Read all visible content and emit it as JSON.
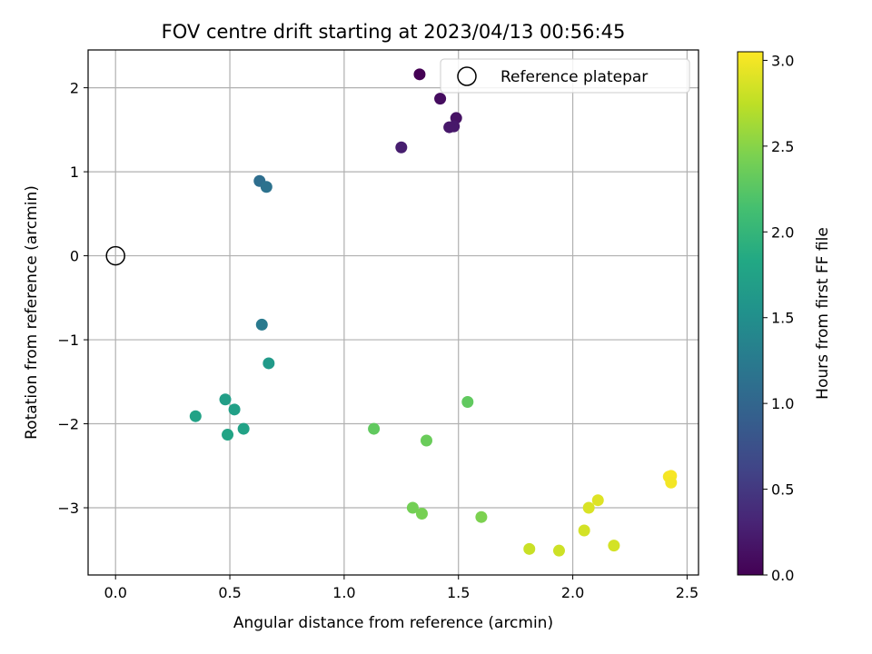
{
  "chart_data": {
    "type": "scatter",
    "title": "FOV centre drift starting at 2023/04/13 00:56:45",
    "xlabel": "Angular distance from reference (arcmin)",
    "ylabel": "Rotation from reference (arcmin)",
    "xlim": [
      -0.12,
      2.55
    ],
    "ylim": [
      -3.8,
      2.45
    ],
    "xticks": [
      0.0,
      0.5,
      1.0,
      1.5,
      2.0,
      2.5
    ],
    "xtick_labels": [
      "0.0",
      "0.5",
      "1.0",
      "1.5",
      "2.0",
      "2.5"
    ],
    "yticks": [
      -3,
      -2,
      -1,
      0,
      1,
      2
    ],
    "ytick_labels": [
      "−3",
      "−2",
      "−1",
      "0",
      "1",
      "2"
    ],
    "grid": true,
    "legend": {
      "placement": "top-right",
      "entries": [
        {
          "label": "Reference platepar",
          "marker": "open-circle"
        }
      ]
    },
    "reference_point": {
      "x": 0.0,
      "y": 0.0,
      "label": "Reference platepar"
    },
    "colorbar": {
      "label": "Hours from first FF file",
      "range": [
        0.0,
        3.05
      ],
      "ticks": [
        0.0,
        0.5,
        1.0,
        1.5,
        2.0,
        2.5,
        3.0
      ],
      "tick_labels": [
        "0.0",
        "0.5",
        "1.0",
        "1.5",
        "2.0",
        "2.5",
        "3.0"
      ],
      "colormap": "viridis"
    },
    "points": [
      {
        "x": 1.33,
        "y": 2.16,
        "hours": 0.0
      },
      {
        "x": 1.42,
        "y": 1.87,
        "hours": 0.1
      },
      {
        "x": 1.49,
        "y": 1.64,
        "hours": 0.15
      },
      {
        "x": 1.48,
        "y": 1.54,
        "hours": 0.2
      },
      {
        "x": 1.46,
        "y": 1.53,
        "hours": 0.2
      },
      {
        "x": 1.25,
        "y": 1.29,
        "hours": 0.25
      },
      {
        "x": 0.63,
        "y": 0.89,
        "hours": 1.1
      },
      {
        "x": 0.66,
        "y": 0.82,
        "hours": 1.15
      },
      {
        "x": 0.64,
        "y": -0.82,
        "hours": 1.25
      },
      {
        "x": 0.67,
        "y": -1.28,
        "hours": 1.65
      },
      {
        "x": 0.48,
        "y": -1.71,
        "hours": 1.7
      },
      {
        "x": 0.52,
        "y": -1.83,
        "hours": 1.72
      },
      {
        "x": 0.35,
        "y": -1.91,
        "hours": 1.75
      },
      {
        "x": 0.56,
        "y": -2.06,
        "hours": 1.75
      },
      {
        "x": 0.49,
        "y": -2.13,
        "hours": 1.78
      },
      {
        "x": 1.54,
        "y": -1.74,
        "hours": 2.3
      },
      {
        "x": 1.13,
        "y": -2.06,
        "hours": 2.3
      },
      {
        "x": 1.36,
        "y": -2.2,
        "hours": 2.35
      },
      {
        "x": 1.3,
        "y": -3.0,
        "hours": 2.4
      },
      {
        "x": 1.34,
        "y": -3.07,
        "hours": 2.42
      },
      {
        "x": 1.6,
        "y": -3.11,
        "hours": 2.45
      },
      {
        "x": 1.81,
        "y": -3.49,
        "hours": 2.8
      },
      {
        "x": 1.94,
        "y": -3.51,
        "hours": 2.82
      },
      {
        "x": 2.05,
        "y": -3.27,
        "hours": 2.85
      },
      {
        "x": 2.18,
        "y": -3.45,
        "hours": 2.85
      },
      {
        "x": 2.07,
        "y": -3.0,
        "hours": 2.88
      },
      {
        "x": 2.11,
        "y": -2.91,
        "hours": 2.9
      },
      {
        "x": 2.42,
        "y": -2.63,
        "hours": 3.0
      },
      {
        "x": 2.43,
        "y": -2.62,
        "hours": 3.02
      },
      {
        "x": 2.43,
        "y": -2.7,
        "hours": 3.0
      }
    ]
  }
}
